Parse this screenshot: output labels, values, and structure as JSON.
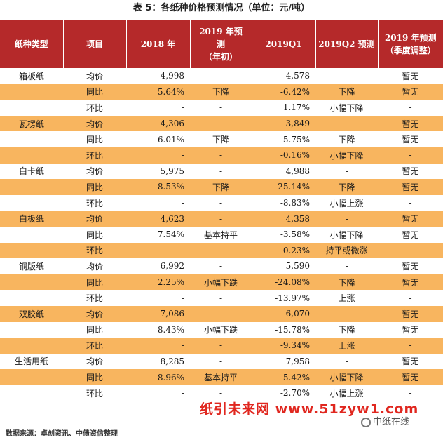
{
  "title": "表 5：各纸种价格预测情况（单位：元/吨）",
  "headers": [
    "纸种类型",
    "项目",
    "2018 年",
    "2019 年预测（年初）",
    "2019Q1",
    "2019Q2 预测",
    "2019 年预测（季度调整）"
  ],
  "header_lines": [
    [
      "纸种类型"
    ],
    [
      "项目"
    ],
    [
      "2018 年"
    ],
    [
      "2019 年预",
      "测",
      "（年初）"
    ],
    [
      "2019Q1"
    ],
    [
      "2019Q2 预测"
    ],
    [
      "2019 年预测",
      "（季度调整）"
    ]
  ],
  "rows": [
    {
      "type": "箱板纸",
      "item": "均价",
      "y2018": "4,998",
      "y2019_forecast": "-",
      "q1": "4,578",
      "q2": "-",
      "adj": "暂无",
      "style": "white"
    },
    {
      "type": "",
      "item": "同比",
      "y2018": "5.64%",
      "y2019_forecast": "下降",
      "q1": "-6.42%",
      "q2": "下降",
      "adj": "暂无",
      "style": "orange"
    },
    {
      "type": "",
      "item": "环比",
      "y2018": "-",
      "y2019_forecast": "-",
      "q1": "1.17%",
      "q2": "小幅下降",
      "adj": "-",
      "style": "white"
    },
    {
      "type": "瓦楞纸",
      "item": "均价",
      "y2018": "4,306",
      "y2019_forecast": "-",
      "q1": "3,849",
      "q2": "-",
      "adj": "暂无",
      "style": "orange"
    },
    {
      "type": "",
      "item": "同比",
      "y2018": "6.01%",
      "y2019_forecast": "下降",
      "q1": "-5.75%",
      "q2": "下降",
      "adj": "暂无",
      "style": "white"
    },
    {
      "type": "",
      "item": "环比",
      "y2018": "-",
      "y2019_forecast": "-",
      "q1": "-0.16%",
      "q2": "小幅下降",
      "adj": "-",
      "style": "orange"
    },
    {
      "type": "白卡纸",
      "item": "均价",
      "y2018": "5,975",
      "y2019_forecast": "-",
      "q1": "4,988",
      "q2": "-",
      "adj": "暂无",
      "style": "white"
    },
    {
      "type": "",
      "item": "同比",
      "y2018": "-8.53%",
      "y2019_forecast": "下降",
      "q1": "-25.14%",
      "q2": "下降",
      "adj": "暂无",
      "style": "orange"
    },
    {
      "type": "",
      "item": "环比",
      "y2018": "-",
      "y2019_forecast": "-",
      "q1": "-8.83%",
      "q2": "小幅上涨",
      "adj": "-",
      "style": "white"
    },
    {
      "type": "白板纸",
      "item": "均价",
      "y2018": "4,623",
      "y2019_forecast": "-",
      "q1": "4,358",
      "q2": "-",
      "adj": "暂无",
      "style": "orange"
    },
    {
      "type": "",
      "item": "同比",
      "y2018": "7.54%",
      "y2019_forecast": "基本持平",
      "q1": "-3.58%",
      "q2": "小幅下降",
      "adj": "暂无",
      "style": "white"
    },
    {
      "type": "",
      "item": "环比",
      "y2018": "-",
      "y2019_forecast": "-",
      "q1": "-0.23%",
      "q2": "持平或微涨",
      "adj": "-",
      "style": "orange"
    },
    {
      "type": "铜版纸",
      "item": "均价",
      "y2018": "6,992",
      "y2019_forecast": "-",
      "q1": "5,590",
      "q2": "-",
      "adj": "暂无",
      "style": "white"
    },
    {
      "type": "",
      "item": "同比",
      "y2018": "2.25%",
      "y2019_forecast": "小幅下跌",
      "q1": "-24.08%",
      "q2": "下降",
      "adj": "暂无",
      "style": "orange"
    },
    {
      "type": "",
      "item": "环比",
      "y2018": "-",
      "y2019_forecast": "-",
      "q1": "-13.97%",
      "q2": "上涨",
      "adj": "-",
      "style": "white"
    },
    {
      "type": "双胶纸",
      "item": "均价",
      "y2018": "7,086",
      "y2019_forecast": "-",
      "q1": "6,070",
      "q2": "-",
      "adj": "暂无",
      "style": "orange"
    },
    {
      "type": "",
      "item": "同比",
      "y2018": "8.43%",
      "y2019_forecast": "小幅下跌",
      "q1": "-15.78%",
      "q2": "下降",
      "adj": "暂无",
      "style": "white"
    },
    {
      "type": "",
      "item": "环比",
      "y2018": "-",
      "y2019_forecast": "-",
      "q1": "-9.34%",
      "q2": "上涨",
      "adj": "-",
      "style": "orange"
    },
    {
      "type": "生活用纸",
      "item": "均价",
      "y2018": "8,285",
      "y2019_forecast": "-",
      "q1": "7,958",
      "q2": "-",
      "adj": "暂无",
      "style": "white"
    },
    {
      "type": "",
      "item": "同比",
      "y2018": "8.96%",
      "y2019_forecast": "基本持平",
      "q1": "-5.42%",
      "q2": "小幅下降",
      "adj": "暂无",
      "style": "orange"
    },
    {
      "type": "",
      "item": "环比",
      "y2018": "-",
      "y2019_forecast": "-",
      "q1": "-2.70%",
      "q2": "小幅上涨",
      "adj": "-",
      "style": "white"
    }
  ],
  "footer": "数据来源：卓创资讯、中债资信整理",
  "watermark": "纸引未来网 www.51zyw1.com",
  "watermark2": "中纸在线",
  "colors": {
    "header_bg": "#b5292a",
    "orange_row": "#f8b55f",
    "watermark": "#e0271f"
  }
}
